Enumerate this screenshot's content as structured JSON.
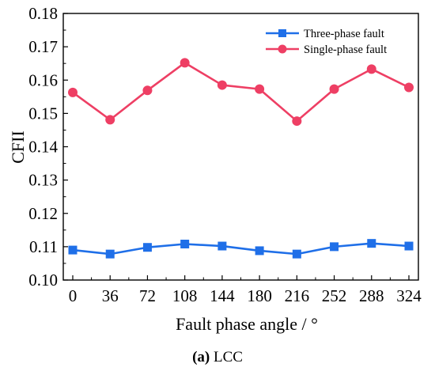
{
  "chart_data": {
    "type": "line",
    "xlabel": "Fault phase angle / °",
    "ylabel": "CFII",
    "categories": [
      "0",
      "36",
      "72",
      "108",
      "144",
      "180",
      "216",
      "252",
      "288",
      "324"
    ],
    "x": [
      0,
      36,
      72,
      108,
      144,
      180,
      216,
      252,
      288,
      324
    ],
    "xlim": [
      0,
      324
    ],
    "ylim": [
      0.1,
      0.18
    ],
    "yticks": [
      "0.10",
      "0.11",
      "0.12",
      "0.13",
      "0.14",
      "0.15",
      "0.16",
      "0.17",
      "0.18"
    ],
    "ytick_values": [
      0.1,
      0.11,
      0.12,
      0.13,
      0.14,
      0.15,
      0.16,
      0.17,
      0.18
    ],
    "grid": false,
    "legend_position": "top-right",
    "series": [
      {
        "name": "Three-phase fault",
        "color": "#1f6fe8",
        "marker": "square",
        "values": [
          0.109,
          0.1078,
          0.1098,
          0.1108,
          0.1102,
          0.1088,
          0.1078,
          0.11,
          0.111,
          0.1102
        ]
      },
      {
        "name": "Single-phase fault",
        "color": "#ee3f64",
        "marker": "circle",
        "values": [
          0.1563,
          0.1481,
          0.1569,
          0.1652,
          0.1585,
          0.1573,
          0.1477,
          0.1573,
          0.1633,
          0.1578
        ]
      }
    ]
  },
  "caption": {
    "label": "(a)",
    "text": " LCC"
  }
}
